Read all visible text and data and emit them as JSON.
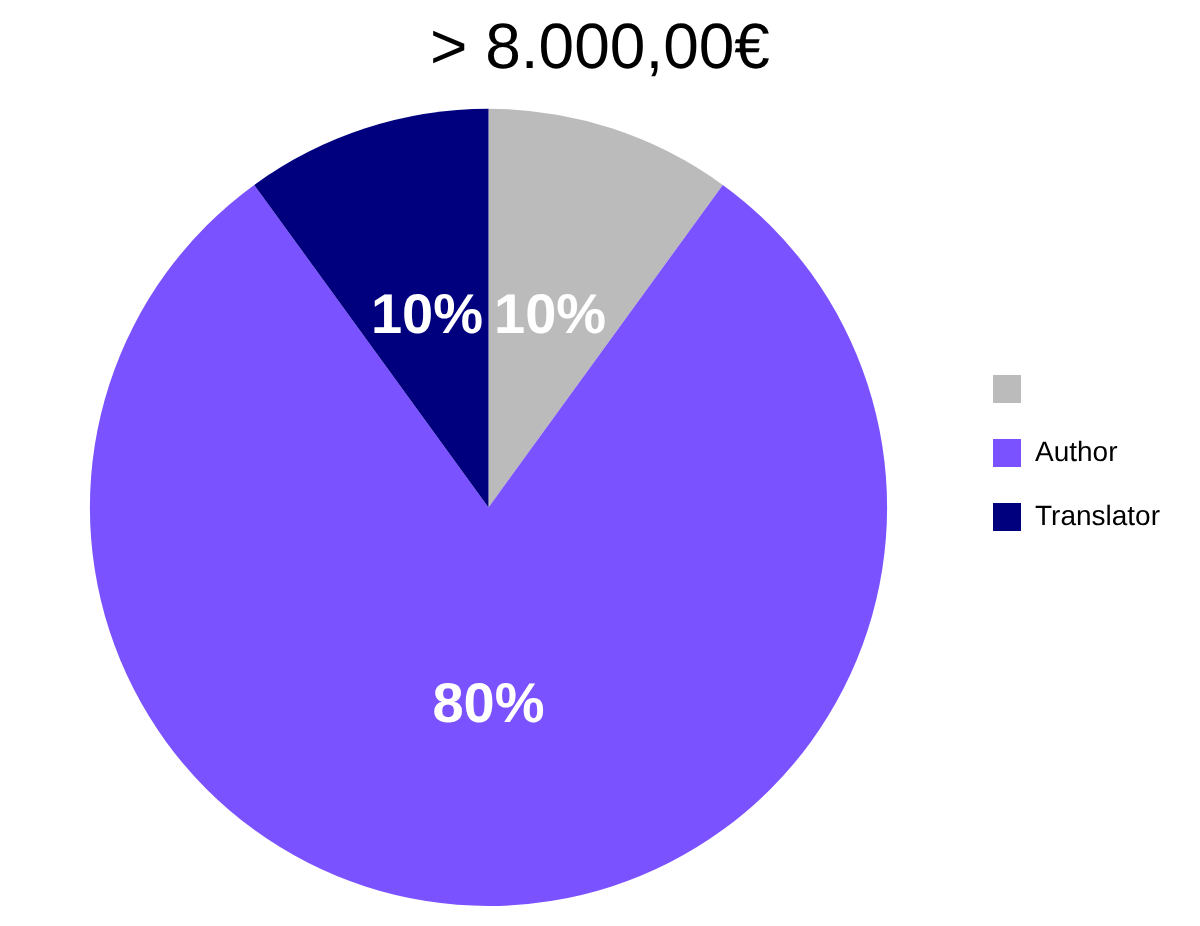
{
  "chart_data": {
    "type": "pie",
    "title": "> 8.000,00€",
    "categories": [
      null,
      "Author",
      "Translator"
    ],
    "values": [
      10,
      80,
      10
    ],
    "colors": [
      "#bbbbbb",
      "#7b52ff",
      "#00007f"
    ],
    "value_labels": [
      "10%",
      "80%",
      "10%"
    ],
    "legend": "right"
  }
}
